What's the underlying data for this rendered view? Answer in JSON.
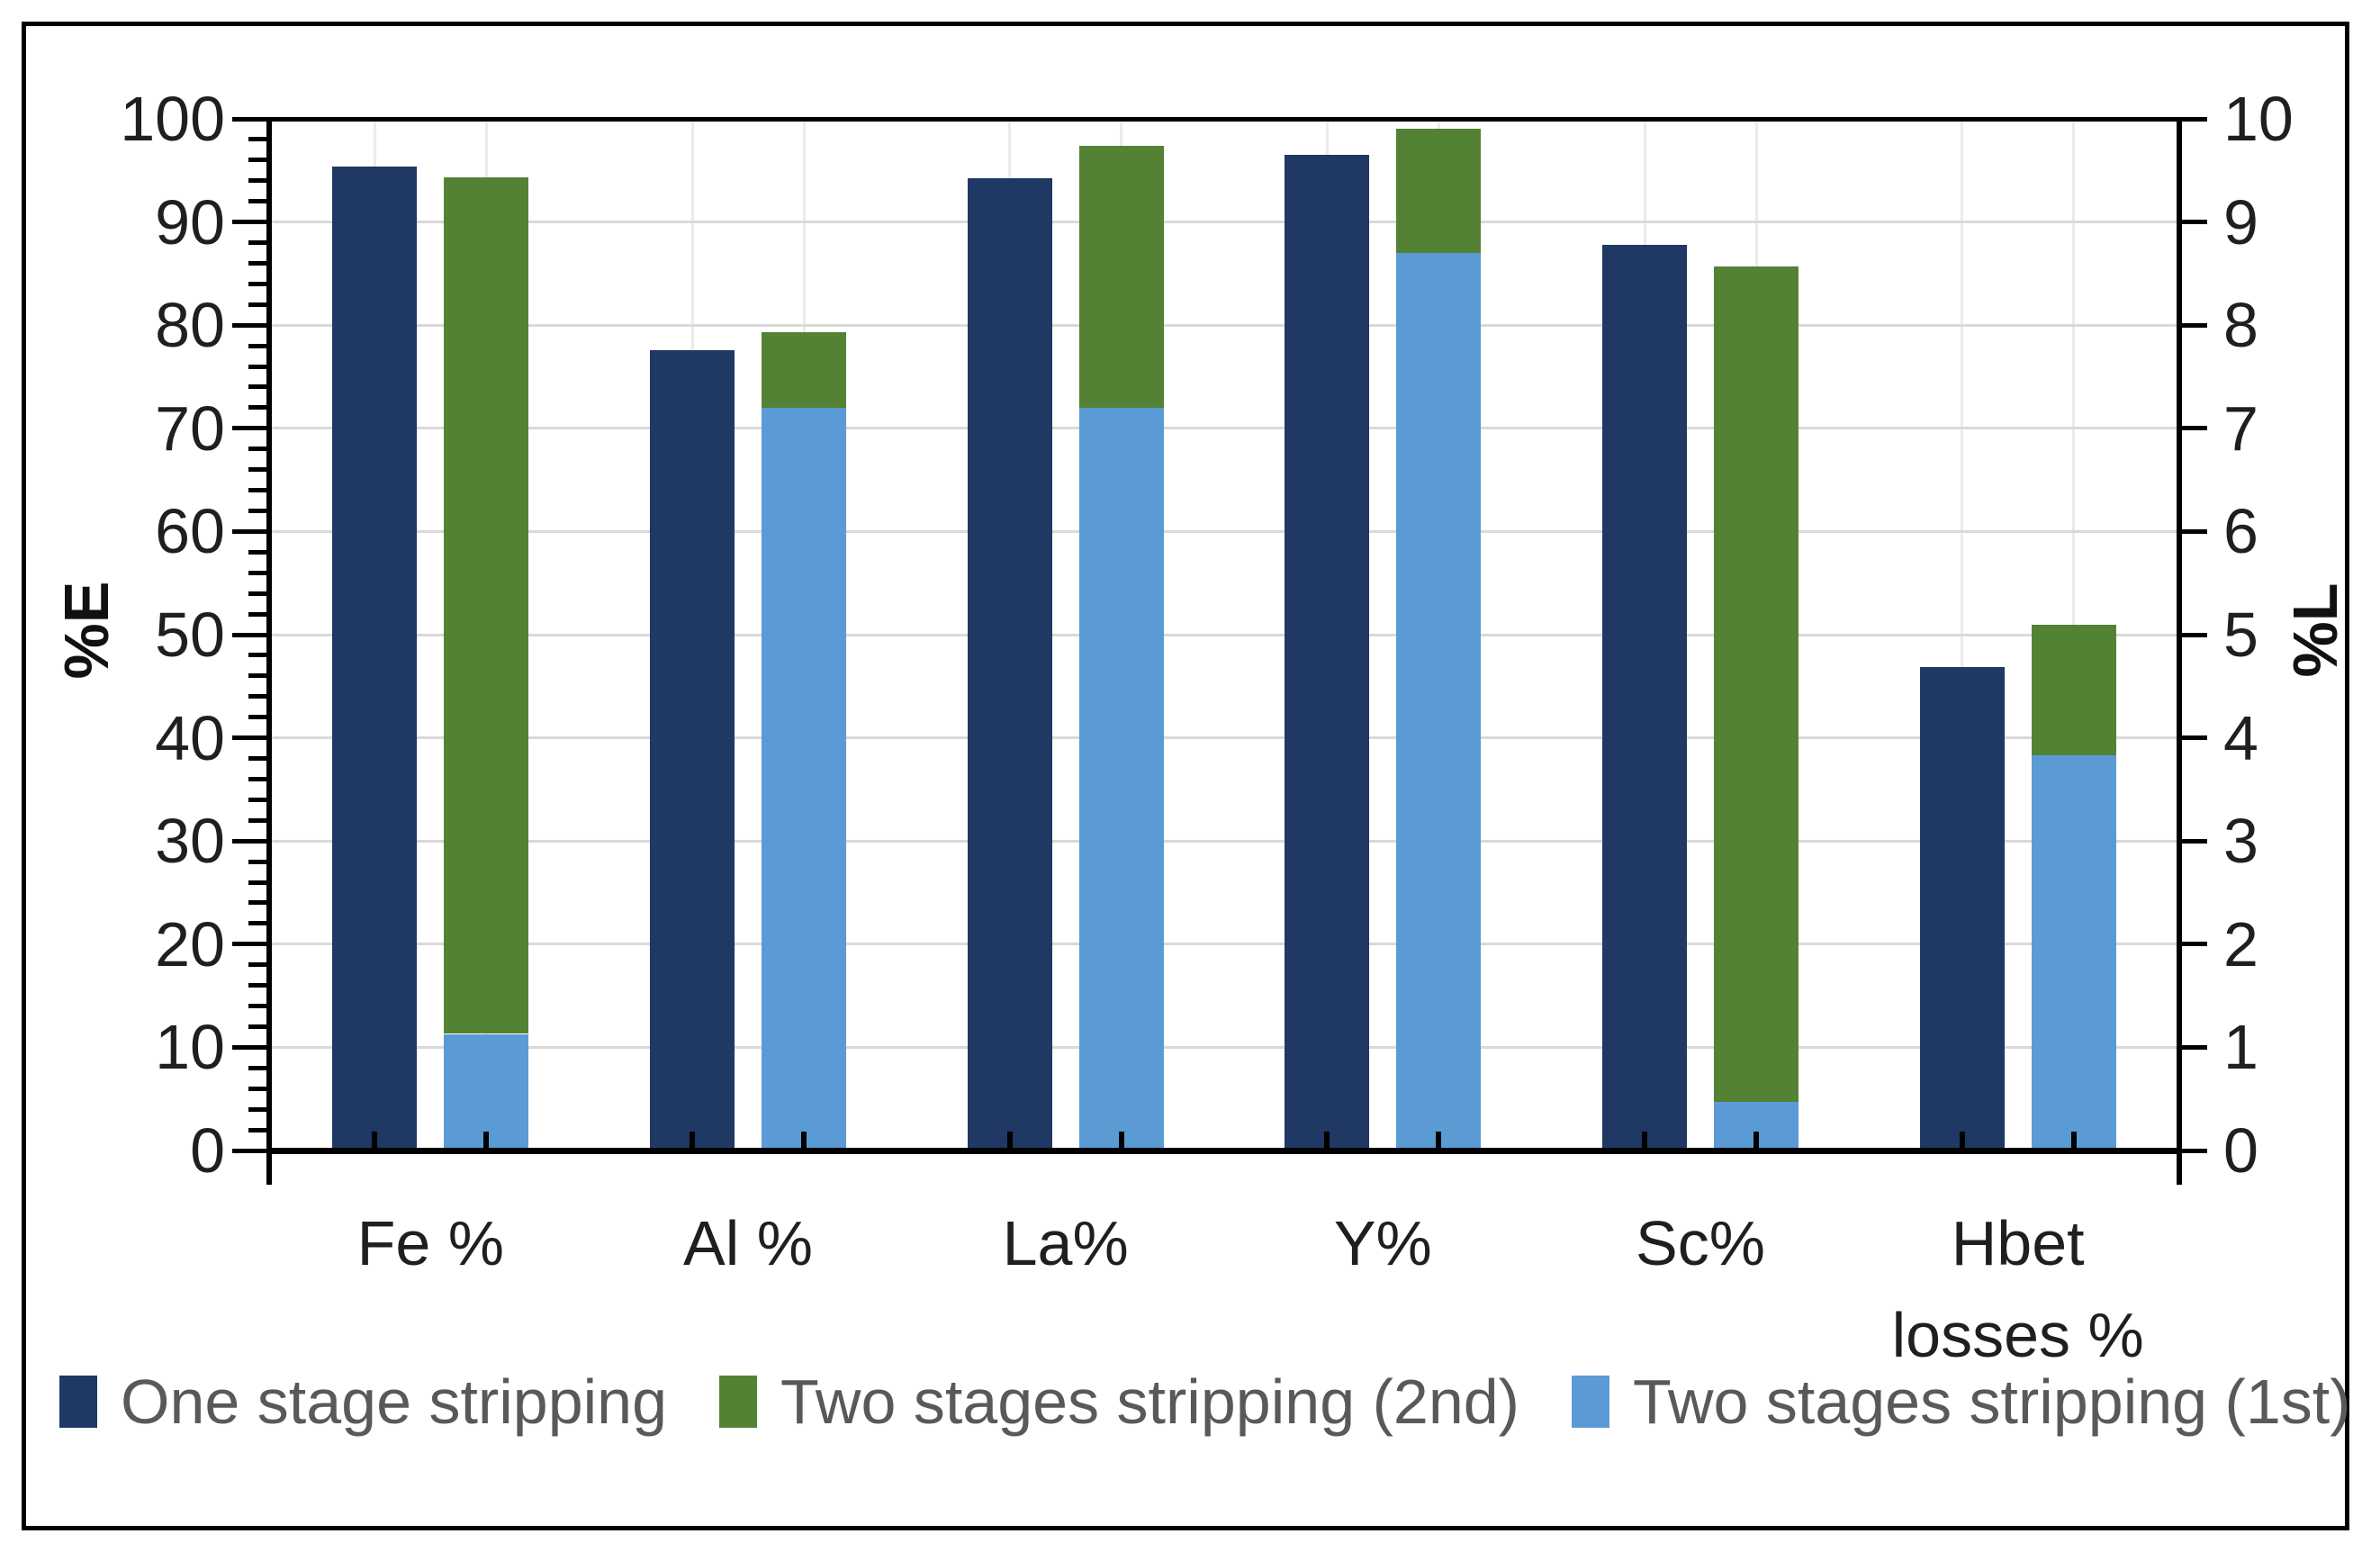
{
  "chart_data": {
    "type": "bar",
    "title": "",
    "description": "Clustered single bar plus stacked bar per category; stripping extraction percentages",
    "categories": [
      "Fe %",
      "Al %",
      "La%",
      "Y%",
      "Sc%",
      "Hbet losses %"
    ],
    "category_label_lines": [
      [
        "Fe %"
      ],
      [
        "Al %"
      ],
      [
        "La%"
      ],
      [
        "Y%"
      ],
      [
        "Sc%"
      ],
      [
        "Hbet",
        "losses %"
      ]
    ],
    "series": [
      {
        "name": "One stage stripping",
        "role": "single",
        "color": "#1f3864",
        "values": [
          95.4,
          77.6,
          94.2,
          96.5,
          87.8,
          46.9
        ]
      },
      {
        "name": "Two stages stripping (1st)",
        "role": "stack-base",
        "color": "#5b9bd5",
        "values": [
          11.3,
          72.0,
          72.0,
          87.0,
          4.7,
          38.3
        ]
      },
      {
        "name": "Two stages stripping (2nd)",
        "role": "stack-top",
        "color": "#548235",
        "values": [
          83.0,
          7.3,
          25.4,
          12.0,
          81.0,
          12.7
        ]
      }
    ],
    "stack_totals": [
      94.3,
      79.3,
      97.4,
      99.0,
      85.7,
      51.0
    ],
    "left_axis": {
      "title": "%E",
      "min": 0,
      "max": 100,
      "step": 10,
      "minor_step": 2,
      "tick_labels": [
        "0",
        "10",
        "20",
        "30",
        "40",
        "50",
        "60",
        "70",
        "80",
        "90",
        "100"
      ]
    },
    "right_axis": {
      "title": "%L",
      "min": 0,
      "max": 10,
      "step": 1,
      "tick_labels": [
        "0",
        "1",
        "2",
        "3",
        "4",
        "5",
        "6",
        "7",
        "8",
        "9",
        "10"
      ]
    },
    "grid": {
      "horizontal": true,
      "vertical_at_bar_centers": true
    },
    "legend_position": "bottom",
    "colors": {
      "grid": "#d9d9d9",
      "vertical_grid": "#ebebeb",
      "axis": "#000000",
      "tick_text": "#1f1f1f",
      "legend_text": "#595959"
    }
  },
  "legend": {
    "items": [
      {
        "label": "One stage stripping",
        "color": "#1f3864"
      },
      {
        "label": "Two stages stripping (2nd)",
        "color": "#548235"
      },
      {
        "label": "Two stages stripping (1st)",
        "color": "#5b9bd5"
      }
    ]
  },
  "axis_titles": {
    "left": "%E",
    "right": "%L"
  }
}
